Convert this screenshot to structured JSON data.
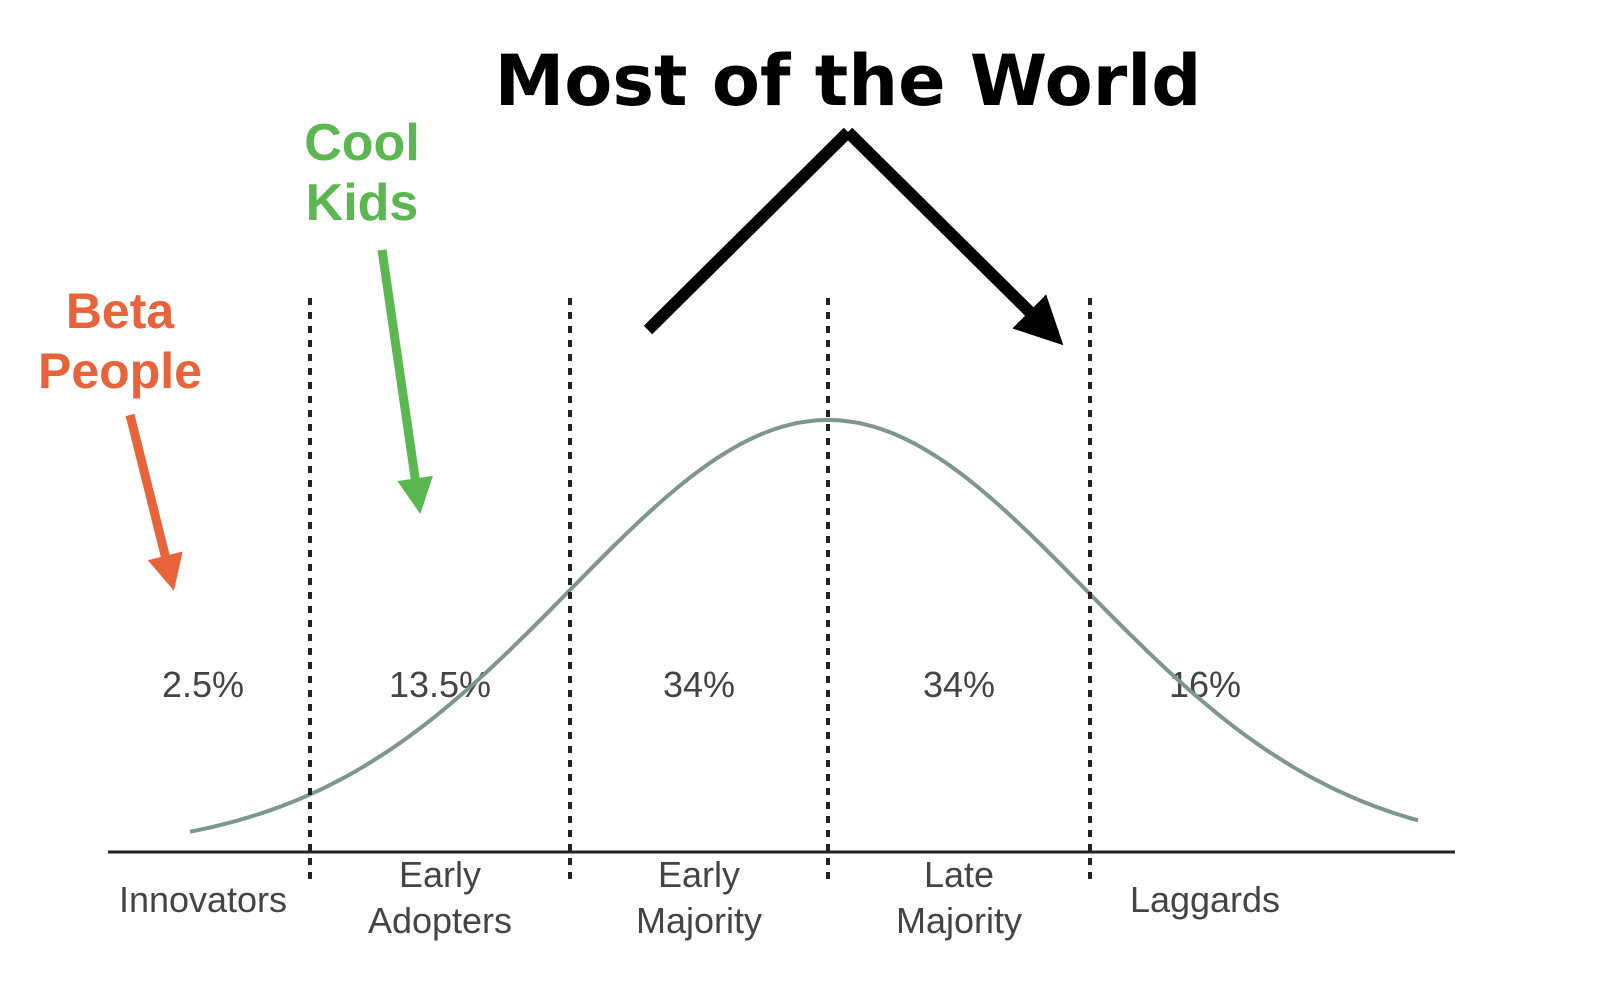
{
  "chart_data": {
    "type": "bell",
    "title": "Most of the World",
    "annotations": [
      {
        "text": "Cool Kids",
        "color": "#5bb850"
      },
      {
        "text": "Beta People",
        "color": "#e8623a"
      }
    ],
    "categories": [
      "Innovators",
      "Early Adopters",
      "Early Majority",
      "Late Majority",
      "Laggards"
    ],
    "values": [
      2.5,
      13.5,
      34,
      34,
      16
    ],
    "value_labels": [
      "2.5%",
      "13.5%",
      "34%",
      "34%",
      "16%"
    ],
    "color": "#7f9690"
  }
}
